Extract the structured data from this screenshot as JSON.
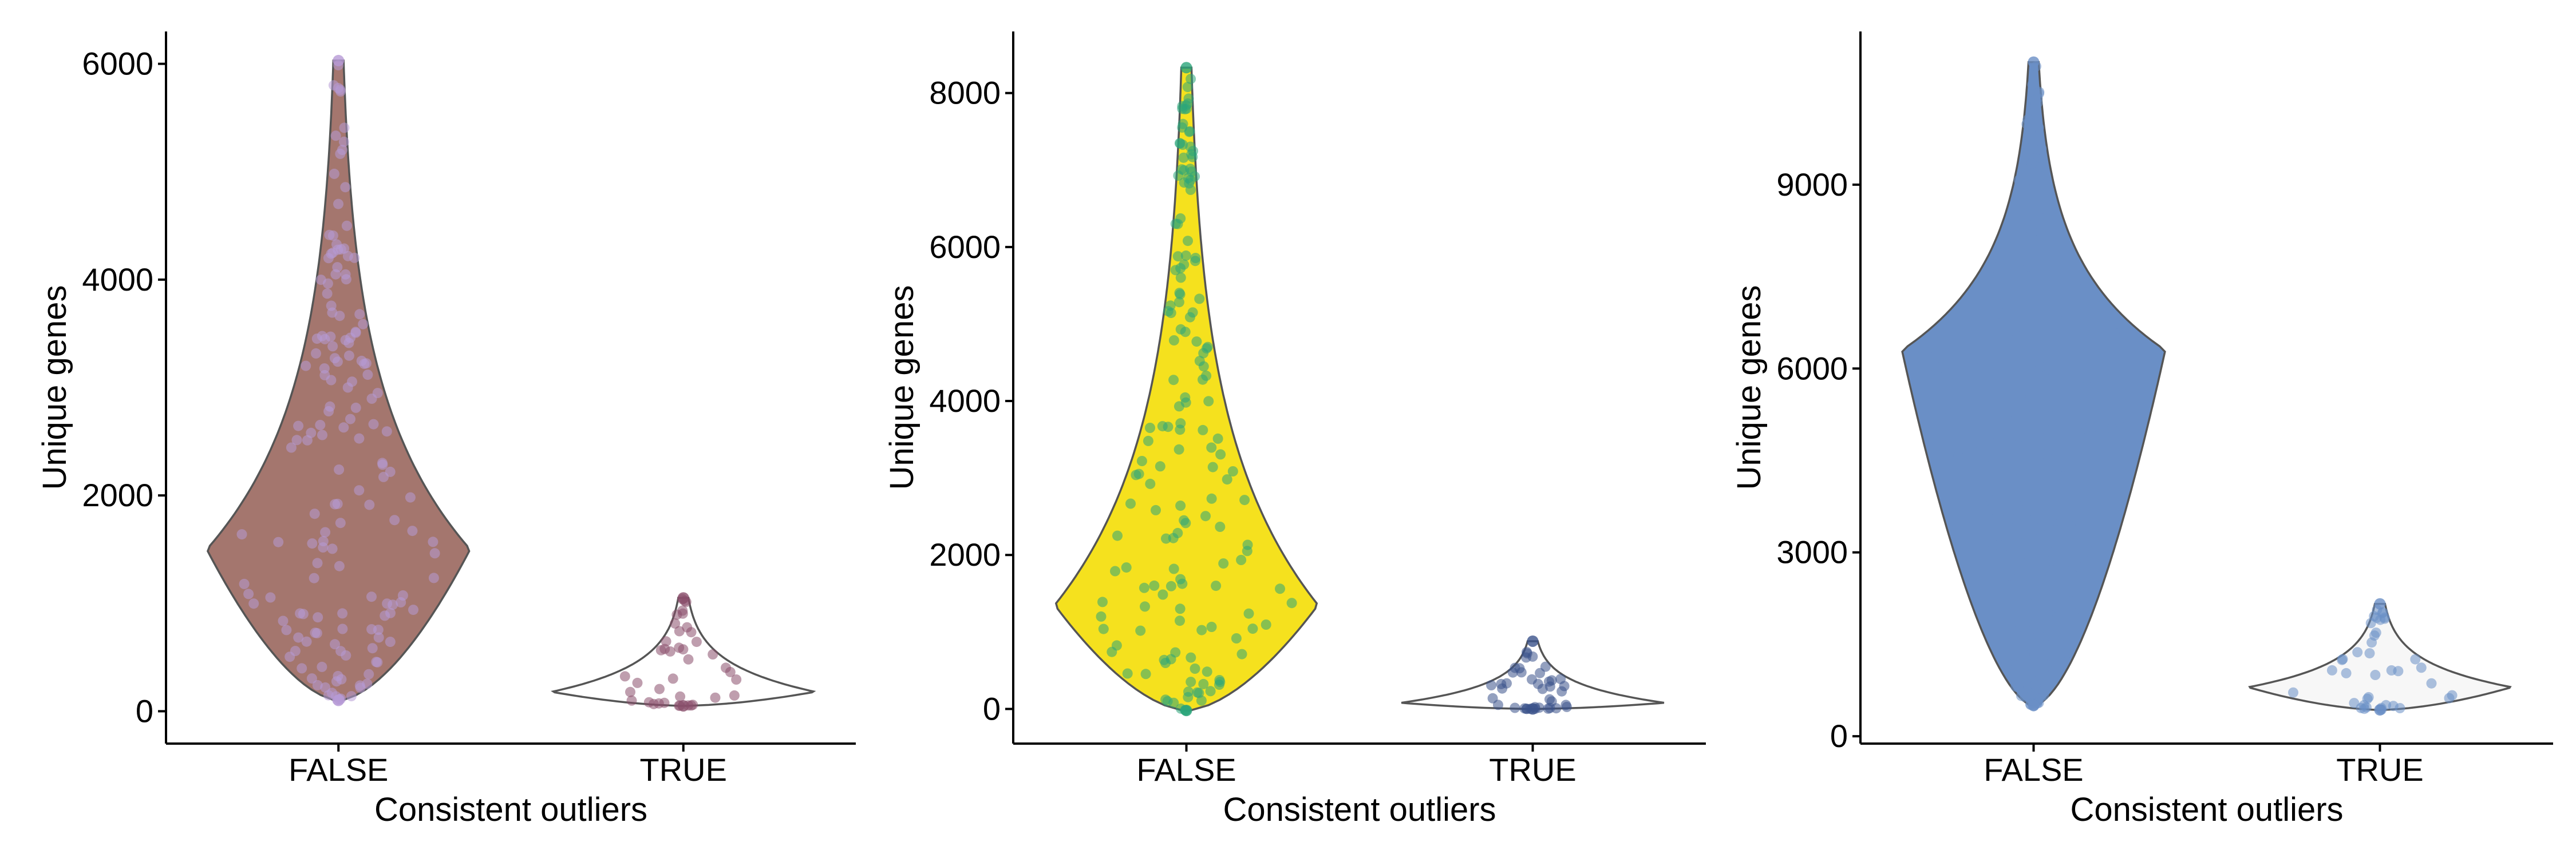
{
  "chart_data": [
    {
      "type": "violin",
      "xlabel": "Consistent outliers",
      "ylabel": "Unique genes",
      "categories": [
        "FALSE",
        "TRUE"
      ],
      "yticks": [
        0,
        2000,
        4000,
        6000
      ],
      "ylim": [
        -300,
        6300
      ],
      "series": [
        {
          "category": "FALSE",
          "min": 100,
          "max": 6030,
          "mode": 1500,
          "fill": "#a4766e",
          "point_color": "#b79ad6"
        },
        {
          "category": "TRUE",
          "min": 50,
          "max": 1050,
          "mode": 180,
          "fill": "#ffffff",
          "point_color": "#8a4f6b"
        }
      ]
    },
    {
      "type": "violin",
      "xlabel": "Consistent outliers",
      "ylabel": "Unique genes",
      "categories": [
        "FALSE",
        "TRUE"
      ],
      "yticks": [
        0,
        2000,
        4000,
        6000,
        8000
      ],
      "ylim": [
        -450,
        8800
      ],
      "series": [
        {
          "category": "FALSE",
          "min": -20,
          "max": 8330,
          "mode": 1350,
          "fill": "#f5e11e",
          "point_color": "#2ca57a"
        },
        {
          "category": "TRUE",
          "min": 0,
          "max": 880,
          "mode": 80,
          "fill": "#ffffff",
          "point_color": "#3b528b"
        }
      ]
    },
    {
      "type": "violin",
      "xlabel": "Consistent outliers",
      "ylabel": "Unique genes",
      "categories": [
        "FALSE",
        "TRUE"
      ],
      "yticks": [
        0,
        3000,
        6000,
        9000
      ],
      "ylim": [
        -120,
        11500
      ],
      "series": [
        {
          "category": "FALSE",
          "min": 500,
          "max": 11000,
          "mode": 6300,
          "fill": "#6a8fc6",
          "point_color": "#6a8fc6"
        },
        {
          "category": "TRUE",
          "min": 430,
          "max": 2160,
          "mode": 800,
          "fill": "#f7f7f7",
          "point_color": "#6a8fc6"
        }
      ]
    }
  ]
}
